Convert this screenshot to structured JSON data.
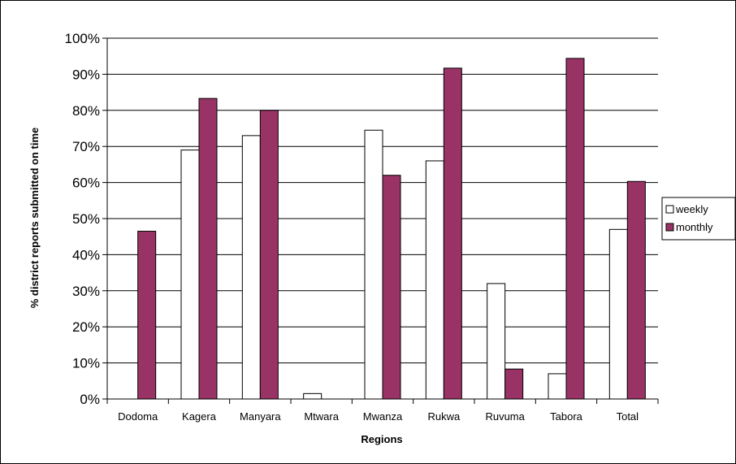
{
  "chart_data": {
    "type": "bar",
    "title": "",
    "xlabel": "Regions",
    "ylabel": "% district reports submitted on time",
    "categories": [
      "Dodoma",
      "Kagera",
      "Manyara",
      "Mtwara",
      "Mwanza",
      "Rukwa",
      "Ruvuma",
      "Tabora",
      "Total"
    ],
    "series": [
      {
        "name": "weekly",
        "color": "#ffffff",
        "values": [
          0,
          69,
          73,
          1.5,
          74.5,
          66,
          32,
          7,
          47
        ]
      },
      {
        "name": "monthly",
        "color": "#993366",
        "values": [
          46.5,
          83.3,
          80,
          0,
          62,
          91.7,
          8.3,
          94.4,
          60.3
        ]
      }
    ],
    "ylim": [
      0,
      100
    ],
    "yticks": [
      0,
      10,
      20,
      30,
      40,
      50,
      60,
      70,
      80,
      90,
      100
    ],
    "ytick_labels": [
      "0%",
      "10%",
      "20%",
      "30%",
      "40%",
      "50%",
      "60%",
      "70%",
      "80%",
      "90%",
      "100%"
    ],
    "grid": true,
    "legend_position": "right"
  }
}
